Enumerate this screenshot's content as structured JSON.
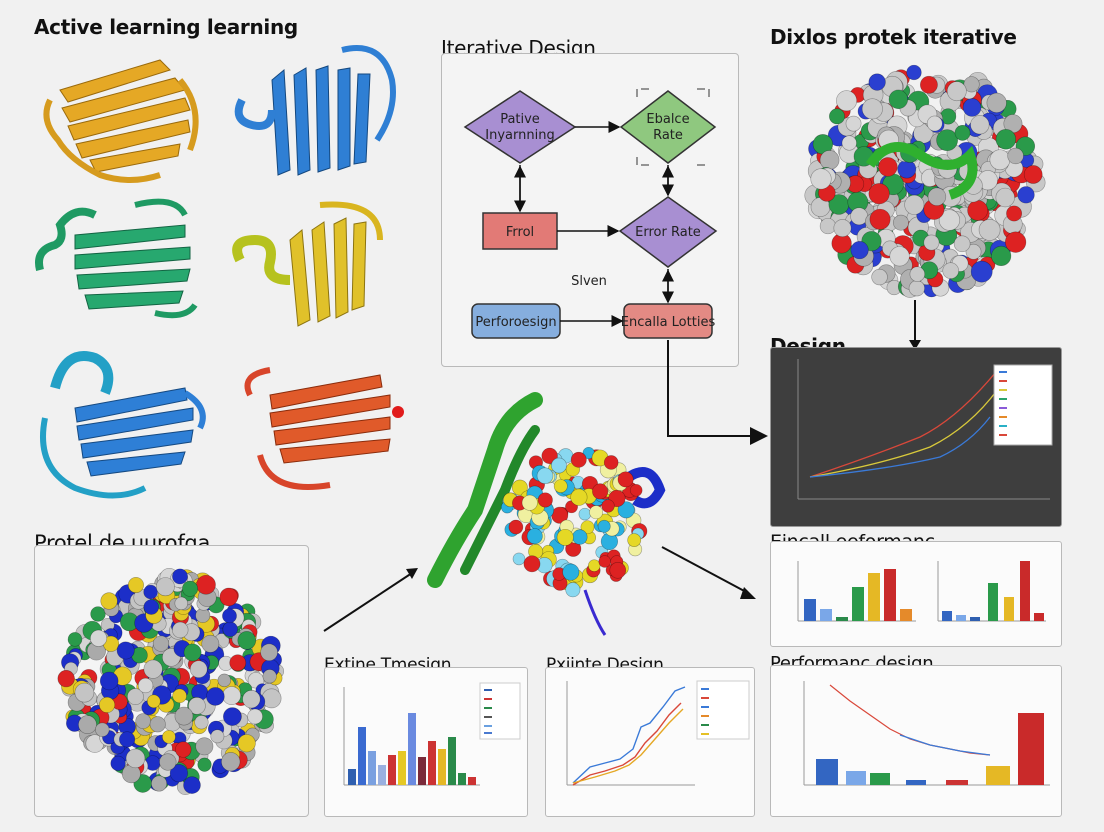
{
  "labels": {
    "top_left": "Active learning learning",
    "top_center": "Iterative Design",
    "top_right": "Dixlos protek iterative",
    "mid_right": "Design",
    "bottom_left": "Protel de ųurofga",
    "bottom_center_left": "Extine Tmesign",
    "bottom_center": "Pxiinte Design",
    "right_bars": "Eincall eeformanc",
    "bottom_right": "Performanc design"
  },
  "flowchart": {
    "node_a_line1": "Pative",
    "node_a_line2": "Inyarnning",
    "node_b_line1": "Ebalce",
    "node_b_line2": "Rate",
    "node_c": "Frrol",
    "node_d": "Error Rate",
    "node_e": "Slven",
    "node_f": "Perforoesign",
    "node_g": "Encalla Lotties"
  },
  "colors": {
    "diamond_purple": "#a88fd2",
    "diamond_green": "#8fc87f",
    "box_red": "#e27a76",
    "box_blue": "#86aede",
    "box_red2": "#e38a84"
  },
  "icons": [
    "protein-ribbon-icon",
    "protein-spacefill-icon",
    "arrow-icon"
  ]
}
